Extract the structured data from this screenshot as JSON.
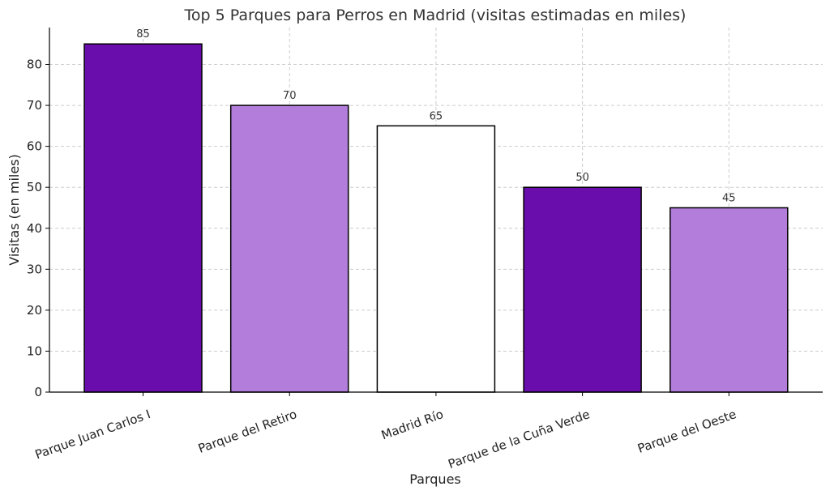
{
  "chart_data": {
    "type": "bar",
    "title": "Top 5 Parques para Perros en Madrid (visitas estimadas en miles)",
    "xlabel": "Parques",
    "ylabel": "Visitas (en miles)",
    "categories": [
      "Parque Juan Carlos I",
      "Parque del Retiro",
      "Madrid Río",
      "Parque de la Cuña Verde",
      "Parque del Oeste"
    ],
    "values": [
      85,
      70,
      65,
      50,
      45
    ],
    "colors": [
      "#6a0dad",
      "#b37ddc",
      "#ffffff",
      "#6a0dad",
      "#b37ddc"
    ],
    "ylim": [
      0,
      89
    ],
    "yticks": [
      0,
      10,
      20,
      30,
      40,
      50,
      60,
      70,
      80
    ],
    "grid": true,
    "data_labels": true
  }
}
